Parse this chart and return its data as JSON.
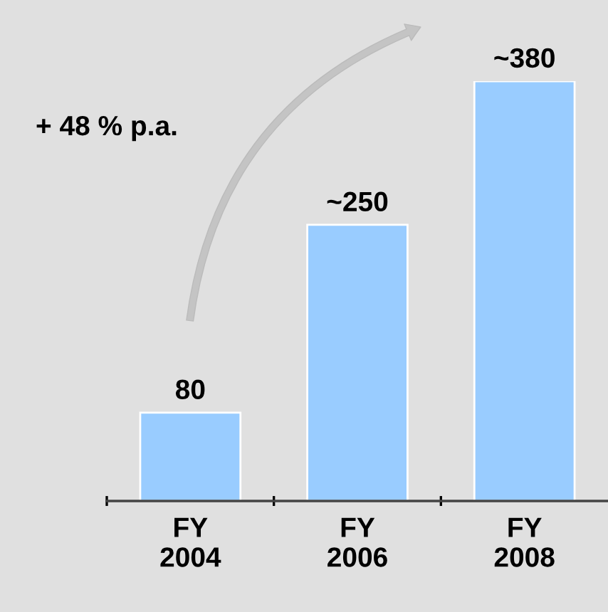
{
  "chart_data": {
    "type": "bar",
    "categories": [
      "FY\n2004",
      "FY\n2006",
      "FY\n2008"
    ],
    "values": [
      80,
      250,
      380
    ],
    "value_labels": [
      "80",
      "~250",
      "~380"
    ],
    "color": "#99ccff",
    "annotations": [
      "+ 48 % p.a."
    ],
    "tick_labels": "x",
    "grid": false,
    "legend": false
  }
}
